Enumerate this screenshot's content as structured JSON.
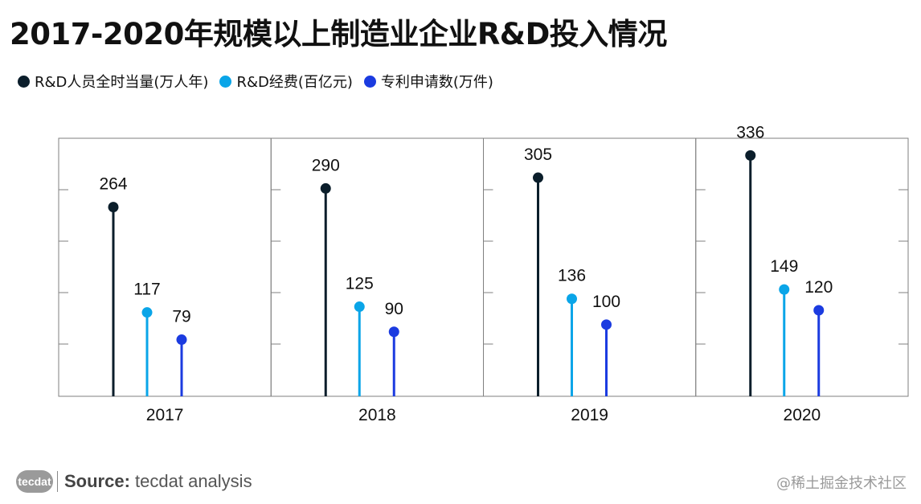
{
  "title": "2017-2020年规模以上制造业企业R&D投入情况",
  "legend": [
    {
      "label": "R&D人员全时当量(万人年)",
      "color": "#0b1e2b"
    },
    {
      "label": "R&D经费(百亿元)",
      "color": "#0aa5e8"
    },
    {
      "label": "专利申请数(万件)",
      "color": "#1b3be0"
    }
  ],
  "chart_data": {
    "type": "lollipop",
    "categories": [
      "2017",
      "2018",
      "2019",
      "2020"
    ],
    "series": [
      {
        "name": "R&D人员全时当量(万人年)",
        "color": "#0b1e2b",
        "values": [
          264,
          290,
          305,
          336
        ]
      },
      {
        "name": "R&D经费(百亿元)",
        "color": "#0aa5e8",
        "values": [
          117,
          125,
          136,
          149
        ]
      },
      {
        "name": "专利申请数(万件)",
        "color": "#1b3be0",
        "values": [
          79,
          90,
          100,
          120
        ]
      }
    ],
    "ylim": [
      0,
      360
    ],
    "grid": false,
    "legend_position": "top-left"
  },
  "footer": {
    "logo_text": "tecdat",
    "source_label": "Source:",
    "source_text": "tecdat analysis",
    "watermark": "@稀土掘金技术社区"
  }
}
